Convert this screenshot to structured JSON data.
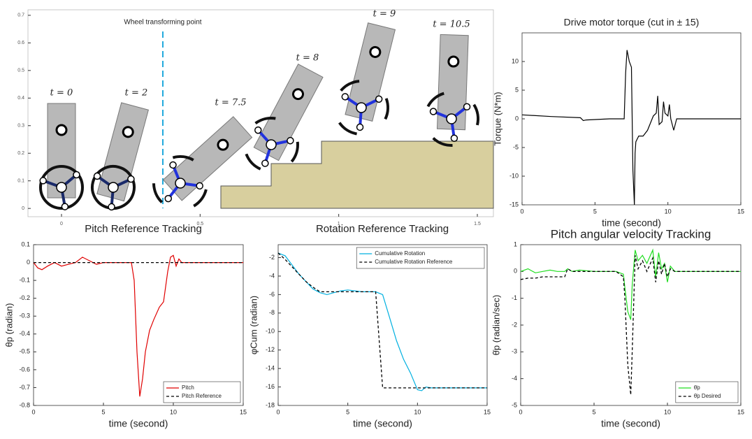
{
  "chart_data": [
    {
      "type": "snapshot",
      "xlim": [
        -0.121,
        1.558
      ],
      "ylim": [
        -0.03,
        0.72
      ],
      "xticks": [
        0,
        0.5,
        1,
        1.5
      ],
      "yticks": [
        0,
        0.1,
        0.2,
        0.3,
        0.4,
        0.5,
        0.6,
        0.7
      ],
      "annotations": [
        "Wheel transforming point",
        "t = 0",
        "t = 2",
        "t = 7.5",
        "t = 8",
        "t = 9",
        "t = 10.5"
      ],
      "captions": [
        "Pitch Reference Tracking",
        "Rotation Reference Tracking"
      ]
    },
    {
      "type": "line",
      "title": "Drive motor torque (cut in ± 15)",
      "xlabel": "time (second)",
      "ylabel": "Torque (N*m)",
      "xlim": [
        0,
        15
      ],
      "ylim": [
        -15,
        15
      ],
      "xticks": [
        0,
        5,
        10,
        15
      ],
      "yticks": [
        -15,
        -10,
        -5,
        0,
        5,
        10
      ],
      "x": [
        0,
        2,
        4,
        4.2,
        4.4,
        6,
        7,
        7.1,
        7.2,
        7.35,
        7.5,
        7.6,
        7.7,
        7.75,
        7.8,
        8,
        8.3,
        8.6,
        9,
        9.2,
        9.3,
        9.4,
        9.6,
        9.7,
        9.8,
        10,
        10.1,
        10.2,
        10.4,
        10.6,
        11,
        15
      ],
      "series": [
        {
          "color": "#000000",
          "style": "solid",
          "values": [
            0.7,
            0.4,
            0.2,
            -0.3,
            -0.2,
            0,
            0,
            8,
            12,
            10,
            9,
            -9,
            -15,
            -6,
            -4,
            -3,
            -3,
            -2,
            0.5,
            1,
            4,
            -1,
            -0.5,
            3,
            1,
            0.5,
            2.5,
            0,
            -2,
            0,
            0,
            0
          ]
        }
      ]
    },
    {
      "type": "line",
      "xlabel": "time (second)",
      "ylabel": "θp (radian)",
      "legend": "lower right",
      "xlim": [
        0,
        15
      ],
      "ylim": [
        -0.8,
        0.1
      ],
      "xticks": [
        0,
        5,
        10,
        15
      ],
      "yticks": [
        -0.8,
        -0.7,
        -0.6,
        -0.5,
        -0.4,
        -0.3,
        -0.2,
        -0.1,
        0,
        0.1
      ],
      "x": [
        0,
        0.3,
        0.6,
        1,
        1.5,
        2,
        2.5,
        3,
        3.5,
        4,
        4.5,
        5,
        5.5,
        6,
        6.5,
        7,
        7.2,
        7.4,
        7.6,
        7.8,
        8,
        8.3,
        8.6,
        9,
        9.3,
        9.6,
        9.8,
        10,
        10.2,
        10.4,
        10.6,
        11,
        12,
        15
      ],
      "series": [
        {
          "name": "Pitch",
          "color": "#e00000",
          "style": "solid",
          "values": [
            0,
            -0.03,
            -0.04,
            -0.02,
            0,
            -0.02,
            -0.01,
            0,
            0.03,
            0.01,
            -0.01,
            0,
            0,
            0,
            0,
            0,
            -0.1,
            -0.5,
            -0.75,
            -0.65,
            -0.5,
            -0.38,
            -0.32,
            -0.25,
            -0.22,
            -0.05,
            0.03,
            0.04,
            -0.02,
            0.02,
            0,
            0,
            0,
            0
          ]
        },
        {
          "name": "Pitch Reference",
          "color": "#000000",
          "style": "dashed",
          "values": [
            0,
            0,
            0,
            0,
            0,
            0,
            0,
            0,
            0,
            0,
            0,
            0,
            0,
            0,
            0,
            0,
            0,
            0,
            0,
            0,
            0,
            0,
            0,
            0,
            0,
            0,
            0,
            0,
            0,
            0,
            0,
            0,
            0,
            0
          ]
        }
      ]
    },
    {
      "type": "line",
      "xlabel": "time (second)",
      "ylabel": "φCum (radian)",
      "legend": "upper right",
      "xlim": [
        0,
        15
      ],
      "ylim": [
        -18,
        -0.6
      ],
      "xticks": [
        0,
        5,
        10,
        15
      ],
      "yticks": [
        -18,
        -16,
        -14,
        -12,
        -10,
        -8,
        -6,
        -4,
        -2
      ],
      "x": [
        0,
        0.5,
        1,
        1.5,
        2,
        2.5,
        3,
        3.5,
        4,
        4.5,
        5,
        5.5,
        6,
        6.5,
        7,
        7.5,
        8,
        8.5,
        9,
        9.5,
        10,
        10.3,
        10.6,
        11,
        12,
        15
      ],
      "series": [
        {
          "name": "Cumulative Rotation",
          "color": "#00b0e0",
          "style": "solid",
          "values": [
            -1.5,
            -1.8,
            -2.8,
            -3.8,
            -4.6,
            -5.4,
            -5.8,
            -6,
            -5.8,
            -5.6,
            -5.5,
            -5.6,
            -5.7,
            -5.7,
            -5.7,
            -6,
            -8.5,
            -11,
            -13,
            -14.5,
            -16.3,
            -16.4,
            -16,
            -16.1,
            -16.1,
            -16.1
          ]
        },
        {
          "name": "Cumulative Rotation Reference",
          "color": "#000000",
          "style": "dashed",
          "values": [
            -1.5,
            -2.2,
            -3,
            -3.8,
            -4.6,
            -5.2,
            -5.7,
            -5.7,
            -5.7,
            -5.7,
            -5.7,
            -5.7,
            -5.7,
            -5.7,
            -5.7,
            -16.1,
            -16.1,
            -16.1,
            -16.1,
            -16.1,
            -16.1,
            -16.1,
            -16.1,
            -16.1,
            -16.1,
            -16.1
          ]
        }
      ]
    },
    {
      "type": "line",
      "title": "Pitch angular velocity Tracking",
      "xlabel": "time (second)",
      "ylabel": "θ̇p (radian/sec)",
      "legend": "lower right",
      "xlim": [
        0,
        15
      ],
      "ylim": [
        -5,
        1
      ],
      "xticks": [
        0,
        5,
        10,
        15
      ],
      "yticks": [
        -5,
        -4,
        -3,
        -2,
        -1,
        0,
        1
      ],
      "x": [
        0,
        0.5,
        1,
        1.5,
        2,
        2.5,
        3,
        3.2,
        3.5,
        4,
        5,
        5.5,
        6,
        6.5,
        7,
        7.1,
        7.3,
        7.5,
        7.6,
        7.8,
        8,
        8.3,
        8.6,
        9,
        9.2,
        9.4,
        9.6,
        9.8,
        10,
        10.2,
        10.5,
        11,
        12,
        15
      ],
      "series": [
        {
          "name": "θ̇p",
          "color": "#22dd22",
          "style": "solid",
          "values": [
            0,
            0.1,
            -0.05,
            0,
            0.05,
            0,
            0,
            0.1,
            0,
            0.05,
            0,
            0,
            0,
            0,
            -0.1,
            -0.6,
            -1.5,
            -1.8,
            -0.5,
            0.8,
            0.4,
            0.6,
            0.3,
            0.8,
            -0.2,
            0.7,
            0.1,
            0.3,
            -0.4,
            0.2,
            0,
            0,
            0,
            0
          ]
        },
        {
          "name": "θ̇p Desired",
          "color": "#000000",
          "style": "dashed",
          "values": [
            -0.3,
            -0.25,
            -0.25,
            -0.2,
            -0.2,
            -0.2,
            -0.2,
            0.1,
            0,
            0,
            0,
            0,
            0,
            0,
            -0.2,
            -1,
            -3.5,
            -4.6,
            -3,
            0.6,
            0.1,
            0.4,
            0,
            0.5,
            -0.4,
            0.4,
            -0.1,
            0.3,
            -0.2,
            0.1,
            0,
            0,
            0,
            0
          ]
        }
      ]
    }
  ]
}
